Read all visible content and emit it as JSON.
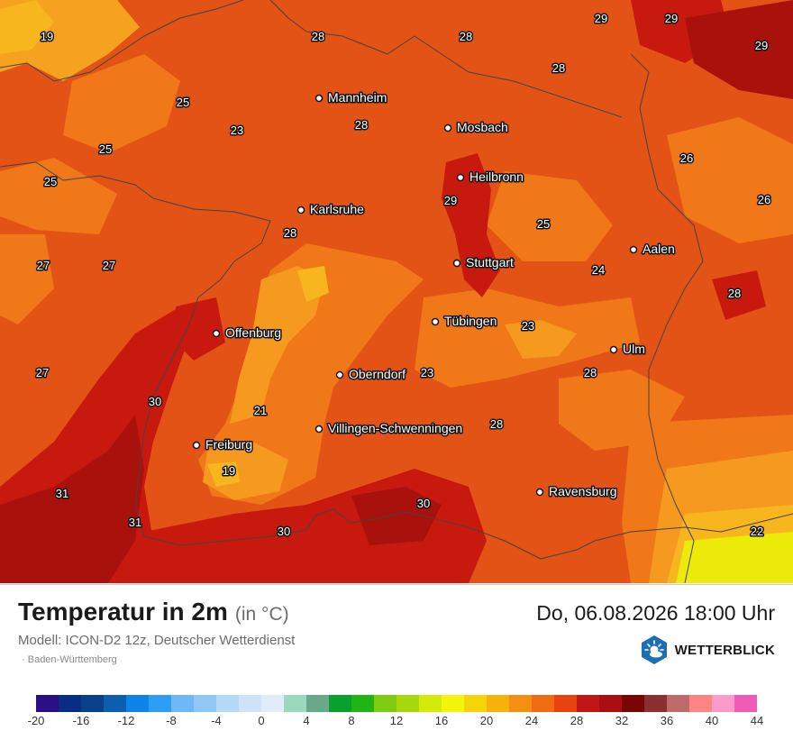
{
  "footer": {
    "title": "Temperatur in 2m",
    "unit": "(in °C)",
    "datetime": "Do, 06.08.2026 18:00 Uhr",
    "model": "Modell: ICON-D2 12z, Deutscher Wetterdienst",
    "region": "Baden-Württemberg",
    "brand": "WETTERBLICK",
    "brand_icon": "sun-cloud-icon"
  },
  "map": {
    "cities": [
      {
        "name": "Mannheim"
      },
      {
        "name": "Mosbach"
      },
      {
        "name": "Heilbronn"
      },
      {
        "name": "Karlsruhe"
      },
      {
        "name": "Aalen"
      },
      {
        "name": "Stuttgart"
      },
      {
        "name": "Tübingen"
      },
      {
        "name": "Offenburg"
      },
      {
        "name": "Ulm"
      },
      {
        "name": "Oberndorf"
      },
      {
        "name": "Villingen-Schwenningen"
      },
      {
        "name": "Freiburg"
      },
      {
        "name": "Ravensburg"
      }
    ],
    "temperatures": [
      "19",
      "28",
      "28",
      "29",
      "29",
      "29",
      "25",
      "23",
      "28",
      "28",
      "25",
      "26",
      "25",
      "29",
      "26",
      "28",
      "25",
      "27",
      "27",
      "24",
      "28",
      "23",
      "27",
      "23",
      "28",
      "30",
      "21",
      "28",
      "19",
      "31",
      "30",
      "31",
      "30",
      "22"
    ]
  },
  "legend": {
    "colors": [
      "#2a0f86",
      "#082d85",
      "#08408a",
      "#0c5eb0",
      "#0e84e6",
      "#2e9ef5",
      "#6cb9f5",
      "#8fc7f5",
      "#b3d9f7",
      "#cfe3f8",
      "#e1ecf9",
      "#9ad9bf",
      "#69a888",
      "#0aa02e",
      "#20b414",
      "#7dcc10",
      "#a7d80c",
      "#d4ea08",
      "#f3f50a",
      "#f5d40a",
      "#f5b30a",
      "#f58f12",
      "#f06c14",
      "#e84210",
      "#c11616",
      "#a90f12",
      "#7a0505",
      "#8a3030",
      "#c06a6a",
      "#ff8585",
      "#ff9bcb",
      "#ee5cb8"
    ],
    "ticks": [
      "-20",
      "-16",
      "-12",
      "-8",
      "-4",
      "0",
      "4",
      "8",
      "12",
      "16",
      "20",
      "24",
      "28",
      "32",
      "36",
      "40",
      "44"
    ]
  },
  "colors": {
    "base": "#e35315",
    "warm": "#c8190f",
    "hot": "#a9110c",
    "mild": "#f07818",
    "cool": "#f59a1f",
    "cooler": "#f7b51e",
    "yellow": "#ecea08",
    "brand": "#1c6fb3"
  }
}
